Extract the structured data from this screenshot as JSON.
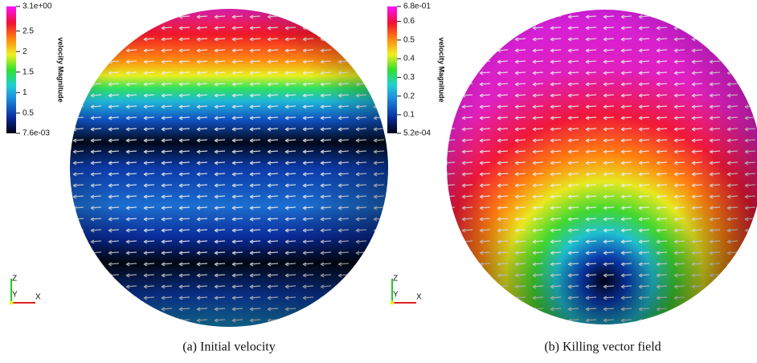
{
  "panels": [
    {
      "colorbar": {
        "title": "velocity Magnitude",
        "range": [
          0.0076,
          3.1
        ],
        "ticks": [
          {
            "value": 3.1,
            "label": "3.1e+00"
          },
          2.5,
          2,
          1.5,
          1,
          0.5,
          {
            "value": 0.0076,
            "label": "7.6e-03"
          }
        ]
      },
      "axes": {
        "z": "Z",
        "y": "Y",
        "x": "X"
      },
      "caption": "(a) Initial velocity"
    },
    {
      "colorbar": {
        "title": "velocity Magnitude",
        "range": [
          0.00052,
          0.68
        ],
        "ticks": [
          {
            "value": 0.68,
            "label": "6.8e-01"
          },
          0.6,
          0.5,
          0.4,
          0.3,
          0.2,
          0.1,
          {
            "value": 0.00052,
            "label": "5.2e-04"
          }
        ]
      },
      "axes": {
        "z": "Z",
        "y": "Y",
        "x": "X"
      },
      "caption": "(b) Killing vector field"
    }
  ]
}
